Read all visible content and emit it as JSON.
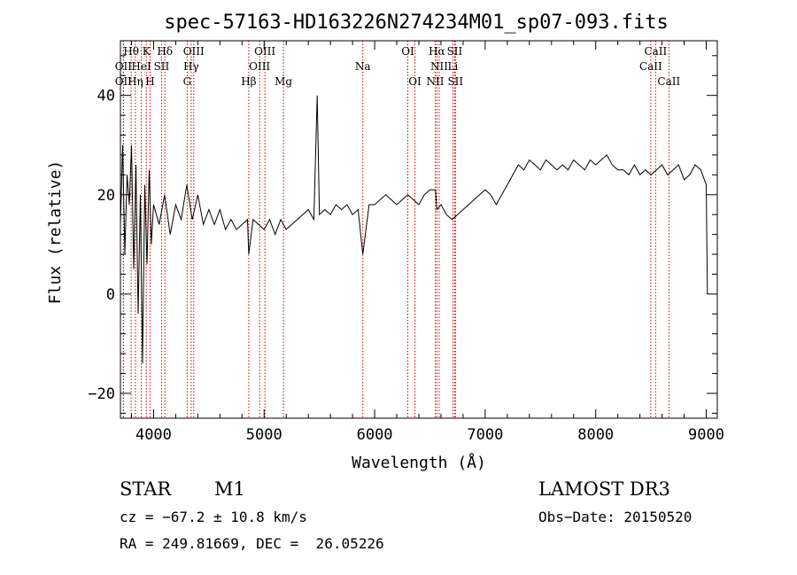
{
  "chart_data": {
    "type": "line",
    "title": "spec-57163-HD163226N274234M01_sp07-093.fits",
    "xlabel": "Wavelength (Å)",
    "ylabel": "Flux (relative)",
    "xlim": [
      3700,
      9100
    ],
    "ylim": [
      -25,
      51
    ],
    "xticks": [
      4000,
      5000,
      6000,
      7000,
      8000,
      9000
    ],
    "yticks": [
      -20,
      0,
      20,
      40
    ],
    "grid": false,
    "series": [
      {
        "name": "flux",
        "x": [
          3700,
          3720,
          3740,
          3760,
          3780,
          3800,
          3820,
          3840,
          3860,
          3880,
          3900,
          3920,
          3940,
          3960,
          3980,
          4000,
          4050,
          4100,
          4150,
          4200,
          4250,
          4300,
          4350,
          4400,
          4450,
          4500,
          4550,
          4600,
          4650,
          4700,
          4750,
          4800,
          4850,
          4861,
          4900,
          4950,
          5000,
          5050,
          5100,
          5150,
          5200,
          5300,
          5400,
          5450,
          5480,
          5500,
          5550,
          5600,
          5650,
          5700,
          5750,
          5800,
          5850,
          5893,
          5950,
          6000,
          6050,
          6100,
          6150,
          6200,
          6250,
          6300,
          6350,
          6400,
          6450,
          6500,
          6550,
          6563,
          6600,
          6650,
          6700,
          6750,
          6800,
          6850,
          6900,
          6950,
          7000,
          7050,
          7100,
          7150,
          7200,
          7250,
          7300,
          7350,
          7400,
          7450,
          7500,
          7550,
          7600,
          7650,
          7700,
          7750,
          7800,
          7850,
          7900,
          7950,
          8000,
          8050,
          8100,
          8150,
          8200,
          8250,
          8300,
          8350,
          8400,
          8450,
          8500,
          8550,
          8600,
          8650,
          8700,
          8750,
          8800,
          8850,
          8900,
          8950,
          9000,
          9010
        ],
        "y": [
          14,
          30,
          8,
          24,
          18,
          30,
          5,
          26,
          -4,
          20,
          -14,
          22,
          6,
          25,
          10,
          18,
          14,
          20,
          12,
          18,
          15,
          22,
          15,
          20,
          14,
          17,
          14,
          17,
          13,
          15,
          13,
          14,
          15,
          8,
          15,
          14,
          13,
          15,
          12,
          15,
          13,
          15,
          17,
          15,
          40,
          16,
          17,
          16,
          18,
          17,
          18,
          16,
          17,
          8,
          18,
          18,
          19,
          20,
          19,
          18,
          19,
          20,
          19,
          18,
          20,
          21,
          21,
          17,
          18,
          16,
          15,
          16,
          17,
          18,
          19,
          20,
          21,
          20,
          18,
          20,
          22,
          24,
          26,
          25,
          27,
          26,
          25,
          27,
          26,
          25,
          26,
          25,
          27,
          26,
          25,
          27,
          26,
          27,
          28,
          26,
          25,
          25,
          24,
          26,
          24,
          25,
          24,
          25,
          26,
          24,
          25,
          26,
          23,
          24,
          26,
          25,
          22,
          0
        ]
      }
    ],
    "line_markers": [
      {
        "label": "Hθ",
        "x": 3797,
        "row": 1
      },
      {
        "label": "OII",
        "x": 3727,
        "row": 2
      },
      {
        "label": "OII",
        "x": 3727,
        "row": 3
      },
      {
        "label": "HeI",
        "x": 3889,
        "row": 2
      },
      {
        "label": "Hη",
        "x": 3835,
        "row": 3
      },
      {
        "label": "K",
        "x": 3934,
        "row": 1
      },
      {
        "label": "H",
        "x": 3968,
        "row": 3
      },
      {
        "label": "Hδ",
        "x": 4102,
        "row": 1
      },
      {
        "label": "SII",
        "x": 4072,
        "row": 2
      },
      {
        "label": "OIII",
        "x": 4363,
        "row": 1
      },
      {
        "label": "Hγ",
        "x": 4340,
        "row": 2
      },
      {
        "label": "G",
        "x": 4304,
        "row": 3
      },
      {
        "label": "OIII",
        "x": 5007,
        "row": 1
      },
      {
        "label": "OIII",
        "x": 4959,
        "row": 2
      },
      {
        "label": "Hβ",
        "x": 4861,
        "row": 3
      },
      {
        "label": "Mg",
        "x": 5175,
        "row": 3
      },
      {
        "label": "Na",
        "x": 5893,
        "row": 2
      },
      {
        "label": "OI",
        "x": 6300,
        "row": 1
      },
      {
        "label": "OI",
        "x": 6364,
        "row": 3
      },
      {
        "label": "Hα",
        "x": 6563,
        "row": 1
      },
      {
        "label": "SII",
        "x": 6724,
        "row": 1
      },
      {
        "label": "NII",
        "x": 6584,
        "row": 2
      },
      {
        "label": "Li",
        "x": 6708,
        "row": 2
      },
      {
        "label": "NII",
        "x": 6548,
        "row": 3
      },
      {
        "label": "SII",
        "x": 6731,
        "row": 3
      },
      {
        "label": "CaII",
        "x": 8542,
        "row": 1
      },
      {
        "label": "CaII",
        "x": 8498,
        "row": 2
      },
      {
        "label": "CaII",
        "x": 8662,
        "row": 3
      }
    ]
  },
  "info": {
    "object_type": "STAR",
    "subclass": "M1",
    "survey": "LAMOST DR3",
    "cz": "cz = −67.2 ± 10.8 km/s",
    "obs_date": "Obs−Date: 20150520",
    "coords": "RA = 249.81669, DEC =  26.05226"
  },
  "colors": {
    "line": "#000000",
    "marker": "#cc0000"
  }
}
